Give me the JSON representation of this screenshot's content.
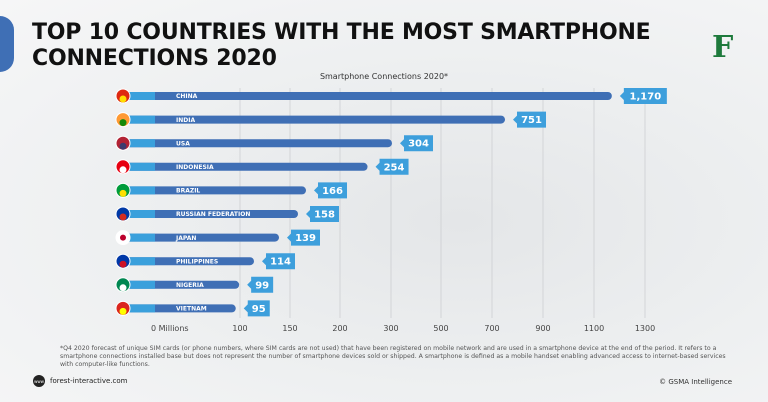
{
  "header": {
    "title_line1": "TOP 10 COUNTRIES WITH THE MOST SMARTPHONE",
    "title_line2": "CONNECTIONS 2020",
    "logo": "F"
  },
  "chart_data": {
    "type": "bar",
    "orientation": "horizontal",
    "title": "Smartphone Connections 2020*",
    "categories": [
      "CHINA",
      "INDIA",
      "USA",
      "INDONESIA",
      "BRAZIL",
      "RUSSIAN FEDERATION",
      "JAPAN",
      "PHILIPPINES",
      "NIGERIA",
      "VIETNAM"
    ],
    "values": [
      1170,
      751,
      304,
      254,
      166,
      158,
      139,
      114,
      99,
      95
    ],
    "value_labels": [
      "1,170",
      "751",
      "304",
      "254",
      "166",
      "158",
      "139",
      "114",
      "99",
      "95"
    ],
    "flags": [
      "china-flag",
      "india-flag",
      "usa-flag",
      "indonesia-flag",
      "brazil-flag",
      "russia-flag",
      "japan-flag",
      "philippines-flag",
      "nigeria-flag",
      "vietnam-flag"
    ],
    "x_ticks": [
      0,
      100,
      150,
      200,
      300,
      500,
      700,
      900,
      1100,
      1300
    ],
    "x_tick_labels": [
      "0  Millions",
      "100",
      "150",
      "200",
      "300",
      "500",
      "700",
      "900",
      "1100",
      "1300"
    ],
    "grid": true,
    "colors": {
      "bar": "#3f6fb5",
      "bar_start": "#3aa0dc",
      "label_box": "#3d9fdc"
    }
  },
  "footer": {
    "footnote": "*Q4 2020 forecast of unique SIM cards (or phone numbers, where SIM cards are not used) that have been registered on mobile network and are used in a smartphone device at the end of the period. It refers to a smartphone connections installed base but does not represent the number of smartphone devices sold or shipped. A smartphone is defined as a mobile handset enabling advanced access to internet-based services with computer-like functions.",
    "website": "forest-interactive.com",
    "www_icon_text": "www",
    "credit": "© GSMA Intelligence"
  }
}
